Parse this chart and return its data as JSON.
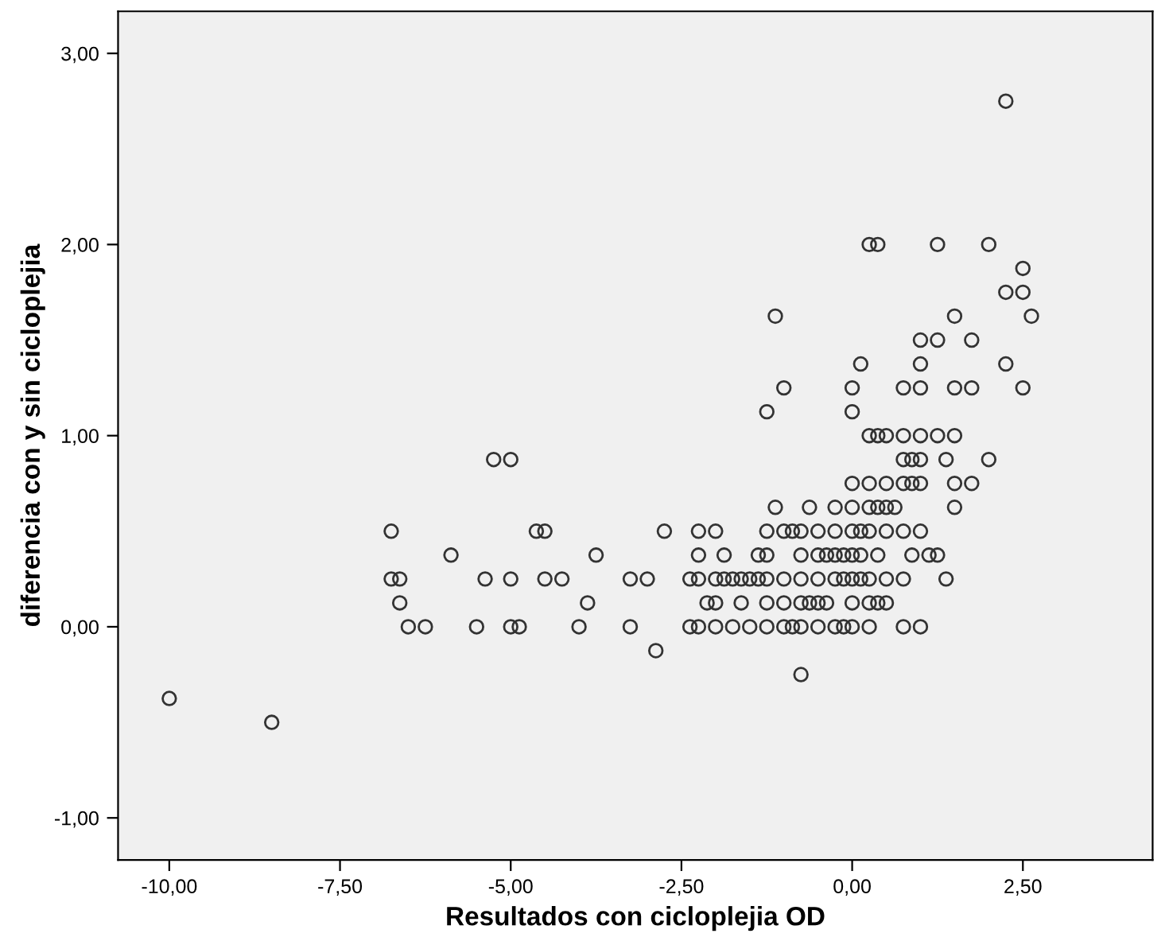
{
  "chart_data": {
    "type": "scatter",
    "xlabel": "Resultados con cicloplejia OD",
    "ylabel": "diferencia con y sin cicloplejia",
    "xlim": [
      -10.75,
      4.4
    ],
    "ylim": [
      -1.22,
      3.22
    ],
    "xticks": [
      {
        "value": -10,
        "label": "-10,00"
      },
      {
        "value": -7.5,
        "label": "-7,50"
      },
      {
        "value": -5,
        "label": "-5,00"
      },
      {
        "value": -2.5,
        "label": "-2,50"
      },
      {
        "value": 0,
        "label": "0,00"
      },
      {
        "value": 2.5,
        "label": "2,50"
      }
    ],
    "yticks": [
      {
        "value": -1,
        "label": "-1,00"
      },
      {
        "value": 0,
        "label": "0,00"
      },
      {
        "value": 1,
        "label": "1,00"
      },
      {
        "value": 2,
        "label": "2,00"
      },
      {
        "value": 3,
        "label": "3,00"
      }
    ],
    "marker": "circle",
    "grid": false,
    "series": [
      {
        "color": "#333333",
        "x": [
          -10,
          -8.5,
          -6.75,
          -5.875,
          -4.625,
          -4.5,
          -2.75,
          -3.75,
          -6.75,
          -6.625,
          -5.375,
          -5.0,
          -4.5,
          -4.25,
          -3.25,
          -3.0,
          -6.625,
          -3.875,
          -6.5,
          -6.25,
          -5.5,
          -5.0,
          -4.875,
          -4.0,
          -3.25,
          -2.875,
          -5.25,
          -5.0,
          2.25,
          0.25,
          0.375,
          1.25,
          2.0,
          2.5,
          2.25,
          2.5,
          -1.125,
          1.5,
          2.625,
          1.0,
          1.25,
          1.75,
          0.125,
          1.0,
          2.25,
          -1.0,
          0,
          0.75,
          1.0,
          1.5,
          1.75,
          2.5,
          -1.25,
          0,
          0.25,
          0.375,
          0.5,
          0.75,
          1.0,
          1.25,
          1.5,
          0.75,
          0.875,
          1.0,
          1.375,
          2.0,
          0,
          0.25,
          0.5,
          0.75,
          0.875,
          1.0,
          1.5,
          1.75,
          -1.125,
          -0.625,
          -0.25,
          0,
          0.25,
          0.375,
          0.5,
          0.625,
          1.5,
          -2.25,
          -2.0,
          -1.25,
          -1.0,
          -0.875,
          -0.75,
          -0.5,
          -0.25,
          0,
          0.125,
          0.25,
          0.5,
          0.75,
          1.0,
          -2.25,
          -1.875,
          -1.375,
          -1.25,
          -0.75,
          -0.5,
          -0.375,
          -0.25,
          -0.125,
          0,
          0.125,
          0.375,
          0.875,
          1.125,
          1.25,
          -2.375,
          -2.25,
          -2.0,
          -1.875,
          -1.75,
          -1.625,
          -1.5,
          -1.375,
          -1.25,
          -1.0,
          -0.75,
          -0.5,
          -0.25,
          -0.125,
          0,
          0.125,
          0.25,
          0.5,
          0.75,
          1.375,
          -2.125,
          -2.0,
          -1.625,
          -1.25,
          -1.0,
          -0.75,
          -0.625,
          -0.5,
          -0.375,
          0,
          0.25,
          0.375,
          0.5,
          -2.375,
          -2.25,
          -2.0,
          -1.75,
          -1.5,
          -1.25,
          -1.0,
          -0.875,
          -0.75,
          -0.5,
          -0.25,
          -0.125,
          0,
          0.25,
          0.75,
          1.0,
          -0.75
        ],
        "values": [
          -0.375,
          -0.5,
          0.5,
          0.375,
          0.5,
          0.5,
          0.5,
          0.375,
          0.25,
          0.25,
          0.25,
          0.25,
          0.25,
          0.25,
          0.25,
          0.25,
          0.125,
          0.125,
          0,
          0,
          0,
          0,
          0,
          0,
          0,
          -0.125,
          0.875,
          0.875,
          2.75,
          2.0,
          2.0,
          2.0,
          2.0,
          1.875,
          1.75,
          1.75,
          1.625,
          1.625,
          1.625,
          1.5,
          1.5,
          1.5,
          1.375,
          1.375,
          1.375,
          1.25,
          1.25,
          1.25,
          1.25,
          1.25,
          1.25,
          1.25,
          1.125,
          1.125,
          1.0,
          1.0,
          1.0,
          1.0,
          1.0,
          1.0,
          1.0,
          0.875,
          0.875,
          0.875,
          0.875,
          0.875,
          0.75,
          0.75,
          0.75,
          0.75,
          0.75,
          0.75,
          0.75,
          0.75,
          0.625,
          0.625,
          0.625,
          0.625,
          0.625,
          0.625,
          0.625,
          0.625,
          0.625,
          0.5,
          0.5,
          0.5,
          0.5,
          0.5,
          0.5,
          0.5,
          0.5,
          0.5,
          0.5,
          0.5,
          0.5,
          0.5,
          0.5,
          0.375,
          0.375,
          0.375,
          0.375,
          0.375,
          0.375,
          0.375,
          0.375,
          0.375,
          0.375,
          0.375,
          0.375,
          0.375,
          0.375,
          0.375,
          0.25,
          0.25,
          0.25,
          0.25,
          0.25,
          0.25,
          0.25,
          0.25,
          0.25,
          0.25,
          0.25,
          0.25,
          0.25,
          0.25,
          0.25,
          0.25,
          0.25,
          0.25,
          0.25,
          0.25,
          0.125,
          0.125,
          0.125,
          0.125,
          0.125,
          0.125,
          0.125,
          0.125,
          0.125,
          0.125,
          0.125,
          0.125,
          0.125,
          0,
          0,
          0,
          0,
          0,
          0,
          0,
          0,
          0,
          0,
          0,
          0,
          0,
          0,
          0,
          0,
          -0.25
        ]
      }
    ]
  }
}
